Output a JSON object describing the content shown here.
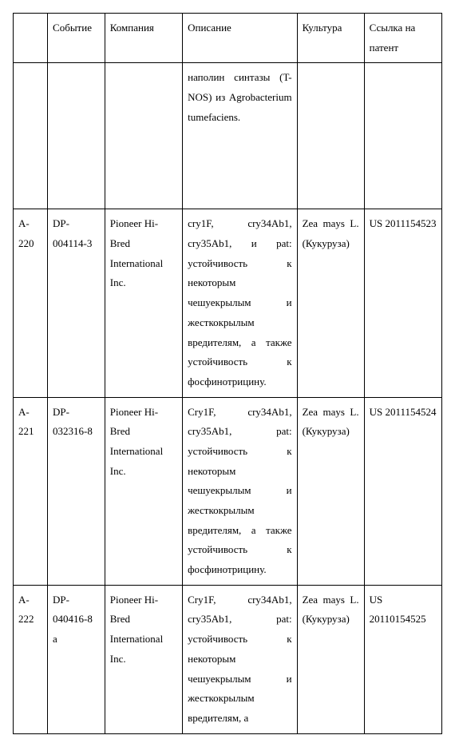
{
  "columns": {
    "c0": "",
    "c1": "Событие",
    "c2": "Компания",
    "c3": "Описание",
    "c4": "Культура",
    "c5": "Ссылка на патент"
  },
  "rows": [
    {
      "a": "",
      "event": "",
      "company": "",
      "description": "наполин синтазы (T-NOS) из Agrobacterium tumefaciens.",
      "culture": "",
      "ref": ""
    },
    {
      "a": "A-220",
      "event": "DP-004114-3",
      "company": "Pioneer Hi-Bred International Inc.",
      "description": "cry1F, cry34Ab1, cry35Ab1, и pat: устойчивость к некоторым чешуекрылым и жесткокрылым вредителям, а также устойчивость к фосфинотрицину.",
      "culture": "Zea mays L. (Кукуруза)",
      "ref": "US 2011154523"
    },
    {
      "a": "A-221",
      "event": "DP-032316-8",
      "company": "Pioneer Hi-Bred International Inc.",
      "description": "Cry1F, cry34Ab1, cry35Ab1, pat: устойчивость к некоторым чешуекрылым и жесткокрылым вредителям, а также устойчивость к фосфинотрицину.",
      "culture": "Zea mays L. (Кукуруза)",
      "ref": "US 2011154524"
    },
    {
      "a": "A-222",
      "event": "DP-040416-8 a",
      "company": "Pioneer Hi-Bred International Inc.",
      "description": "Cry1F, cry34Ab1, cry35Ab1, pat: устойчивость к некоторым чешуекрылым и жесткокрылым вредителям, а",
      "culture": "Zea mays L. (Кукуруза)",
      "ref": "US 20110154525"
    }
  ]
}
